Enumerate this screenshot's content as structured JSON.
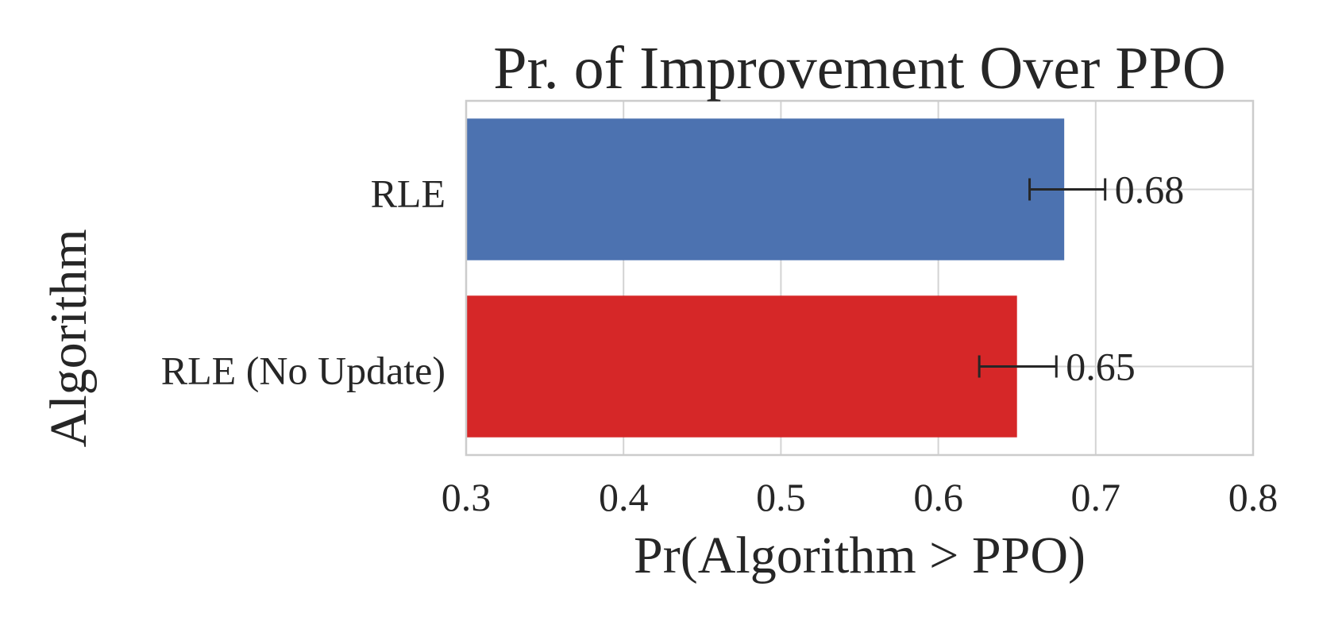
{
  "chart_data": {
    "type": "bar",
    "orientation": "horizontal",
    "title": "Pr. of Improvement Over PPO",
    "xlabel": "Pr(Algorithm > PPO)",
    "ylabel": "Algorithm",
    "xlim": [
      0.3,
      0.8
    ],
    "xticks": [
      "0.3",
      "0.4",
      "0.5",
      "0.6",
      "0.7",
      "0.8"
    ],
    "grid": true,
    "categories": [
      "RLE",
      "RLE (No Update)"
    ],
    "values": [
      0.68,
      0.65
    ],
    "value_labels": [
      "0.68",
      "0.65"
    ],
    "error_low": [
      0.658,
      0.626
    ],
    "error_high": [
      0.706,
      0.675
    ],
    "colors": [
      "#4c72b0",
      "#d62728"
    ],
    "error_color": "#262626"
  }
}
